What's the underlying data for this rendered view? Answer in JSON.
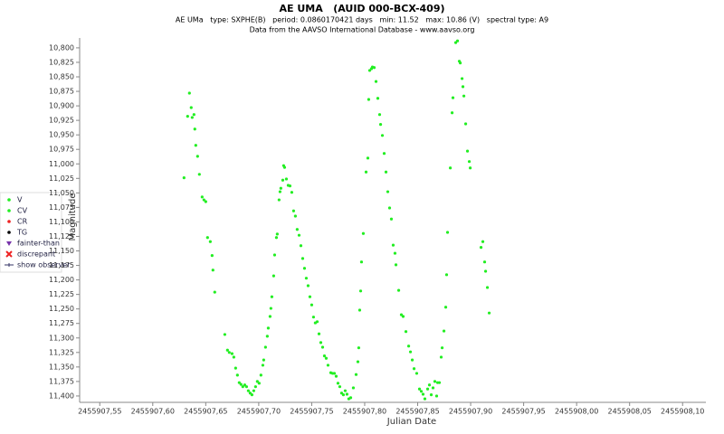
{
  "chart_data": {
    "type": "scatter",
    "title": "AE UMA   (AUID 000-BCX-409)",
    "subtitle": "AE UMa   type: SXPHE(B)   period: 0.0860170421 days   min: 11.52   max: 10.86 (V)   spectral type: A9",
    "source": "Data from the AAVSO International Database - www.aavso.org",
    "x_label": "Julian Date",
    "y_label": "Magnitude",
    "xlim": [
      2455907.531,
      2455908.122
    ],
    "ylim": [
      10.783,
      11.411
    ],
    "y_inverted": true,
    "xticks": [
      {
        "value": 2455907.55,
        "label": "2455907,55"
      },
      {
        "value": 2455907.6,
        "label": "2455907,60"
      },
      {
        "value": 2455907.65,
        "label": "2455907,65"
      },
      {
        "value": 2455907.7,
        "label": "2455907,70"
      },
      {
        "value": 2455907.75,
        "label": "2455907,75"
      },
      {
        "value": 2455907.8,
        "label": "2455907,80"
      },
      {
        "value": 2455907.85,
        "label": "2455907,85"
      },
      {
        "value": 2455907.9,
        "label": "2455907,90"
      },
      {
        "value": 2455907.95,
        "label": "2455907,95"
      },
      {
        "value": 2455908.0,
        "label": "2455908,00"
      },
      {
        "value": 2455908.05,
        "label": "2455908,05"
      },
      {
        "value": 2455908.1,
        "label": "2455908,10"
      }
    ],
    "yticks": [
      {
        "value": 10.8,
        "label": "10,800"
      },
      {
        "value": 10.825,
        "label": "10,825"
      },
      {
        "value": 10.85,
        "label": "10,850"
      },
      {
        "value": 10.875,
        "label": "10,875"
      },
      {
        "value": 10.9,
        "label": "10,900"
      },
      {
        "value": 10.925,
        "label": "10,925"
      },
      {
        "value": 10.95,
        "label": "10,950"
      },
      {
        "value": 10.975,
        "label": "10,975"
      },
      {
        "value": 11.0,
        "label": "11,000"
      },
      {
        "value": 11.025,
        "label": "11,025"
      },
      {
        "value": 11.05,
        "label": "11,050"
      },
      {
        "value": 11.075,
        "label": "11,075"
      },
      {
        "value": 11.1,
        "label": "11,100"
      },
      {
        "value": 11.125,
        "label": "11,125"
      },
      {
        "value": 11.15,
        "label": "11,150"
      },
      {
        "value": 11.175,
        "label": "11,175"
      },
      {
        "value": 11.2,
        "label": "11,200"
      },
      {
        "value": 11.225,
        "label": "11,225"
      },
      {
        "value": 11.25,
        "label": "11,250"
      },
      {
        "value": 11.275,
        "label": "11,275"
      },
      {
        "value": 11.3,
        "label": "11,300"
      },
      {
        "value": 11.325,
        "label": "11,325"
      },
      {
        "value": 11.35,
        "label": "11,350"
      },
      {
        "value": 11.375,
        "label": "11,375"
      },
      {
        "value": 11.4,
        "label": "11,400"
      }
    ],
    "series": [
      {
        "name": "V",
        "color": "#22ee22",
        "x": [
          2455907.6295,
          2455907.6329,
          2455907.6346,
          2455907.6363,
          2455907.6372,
          2455907.6389,
          2455907.6397,
          2455907.6406,
          2455907.6423,
          2455907.644,
          2455907.6466,
          2455907.6483,
          2455907.65,
          2455907.6517,
          2455907.6543,
          2455907.656,
          2455907.6568,
          2455907.6585,
          2455907.668,
          2455907.6705,
          2455907.6722,
          2455907.6748,
          2455907.6765,
          2455907.6782,
          2455907.6799,
          2455907.6816,
          2455907.6833,
          2455907.685,
          2455907.6868,
          2455907.6885,
          2455907.6902,
          2455907.6919,
          2455907.6936,
          2455907.6953,
          2455907.697,
          2455907.6987,
          2455907.7004,
          2455907.7021,
          2455907.7039,
          2455907.7047,
          2455907.7064,
          2455907.7081,
          2455907.709,
          2455907.7107,
          2455907.7115,
          2455907.7124,
          2455907.7141,
          2455907.715,
          2455907.7167,
          2455907.7175,
          2455907.7192,
          2455907.7201,
          2455907.7209,
          2455907.7227,
          2455907.7235,
          2455907.7244,
          2455907.7261,
          2455907.7278,
          2455907.7295,
          2455907.7312,
          2455907.7329,
          2455907.7346,
          2455907.7363,
          2455907.7381,
          2455907.7398,
          2455907.7415,
          2455907.7432,
          2455907.7449,
          2455907.7466,
          2455907.7483,
          2455907.75,
          2455907.7517,
          2455907.7534,
          2455907.7552,
          2455907.7569,
          2455907.7586,
          2455907.7603,
          2455907.762,
          2455907.7637,
          2455907.7654,
          2455907.768,
          2455907.7697,
          2455907.7714,
          2455907.7731,
          2455907.7748,
          2455907.7765,
          2455907.7782,
          2455907.7799,
          2455907.7816,
          2455907.7833,
          2455907.785,
          2455907.7868,
          2455907.7893,
          2455907.7919,
          2455907.7936,
          2455907.7944,
          2455907.7953,
          2455907.7962,
          2455907.797,
          2455907.7987,
          2455907.8013,
          2455907.803,
          2455907.8038,
          2455907.8047,
          2455907.8064,
          2455907.8073,
          2455907.809,
          2455907.8107,
          2455907.8124,
          2455907.8141,
          2455907.815,
          2455907.8167,
          2455907.8184,
          2455907.8201,
          2455907.8218,
          2455907.8235,
          2455907.8252,
          2455907.8269,
          2455907.8286,
          2455907.8295,
          2455907.8321,
          2455907.8346,
          2455907.8363,
          2455907.8389,
          2455907.8415,
          2455907.8432,
          2455907.8449,
          2455907.8466,
          2455907.8491,
          2455907.8517,
          2455907.8534,
          2455907.8551,
          2455907.8568,
          2455907.8594,
          2455907.8611,
          2455907.8628,
          2455907.8645,
          2455907.8662,
          2455907.8679,
          2455907.8688,
          2455907.8705,
          2455907.8722,
          2455907.8731,
          2455907.8748,
          2455907.8765,
          2455907.8773,
          2455907.8782,
          2455907.8808,
          2455907.8825,
          2455907.8833,
          2455907.8859,
          2455907.8876,
          2455907.8893,
          2455907.8902,
          2455907.8919,
          2455907.8927,
          2455907.8936,
          2455907.8953,
          2455907.897,
          2455907.8987,
          2455907.8996,
          2455907.9098,
          2455907.9115,
          2455907.9132,
          2455907.9141,
          2455907.9158,
          2455907.9175
        ],
        "values": [
          11.024,
          10.918,
          10.878,
          10.903,
          10.92,
          10.915,
          10.94,
          10.968,
          10.987,
          11.018,
          11.057,
          11.062,
          11.065,
          11.127,
          11.134,
          11.158,
          11.183,
          11.221,
          11.294,
          11.321,
          11.325,
          11.327,
          11.333,
          11.352,
          11.364,
          11.377,
          11.38,
          11.384,
          11.381,
          11.384,
          11.391,
          11.395,
          11.398,
          11.391,
          11.384,
          11.375,
          11.378,
          11.364,
          11.347,
          11.338,
          11.316,
          11.297,
          11.283,
          11.263,
          11.249,
          11.229,
          11.193,
          11.157,
          11.127,
          11.121,
          11.062,
          11.048,
          11.042,
          11.028,
          11.003,
          11.006,
          11.026,
          11.037,
          11.038,
          11.049,
          11.081,
          11.09,
          11.113,
          11.123,
          11.141,
          11.163,
          11.18,
          11.197,
          11.21,
          11.229,
          11.243,
          11.264,
          11.274,
          11.272,
          11.293,
          11.308,
          11.316,
          11.331,
          11.335,
          11.347,
          11.36,
          11.361,
          11.361,
          11.366,
          11.378,
          11.384,
          11.395,
          11.398,
          11.391,
          11.397,
          11.405,
          11.403,
          11.386,
          11.363,
          11.341,
          11.317,
          11.252,
          11.219,
          11.169,
          11.12,
          11.014,
          10.99,
          10.889,
          10.839,
          10.836,
          10.833,
          10.834,
          10.858,
          10.887,
          10.915,
          10.932,
          10.951,
          10.982,
          11.014,
          11.048,
          11.076,
          11.095,
          11.14,
          11.154,
          11.174,
          11.218,
          11.26,
          11.263,
          11.289,
          11.314,
          11.324,
          11.338,
          11.353,
          11.361,
          11.388,
          11.392,
          11.397,
          11.405,
          11.388,
          11.381,
          11.398,
          11.386,
          11.375,
          11.4,
          11.377,
          11.377,
          11.333,
          11.317,
          11.288,
          11.247,
          11.191,
          11.118,
          11.007,
          10.912,
          10.886,
          10.791,
          10.788,
          10.823,
          10.826,
          10.853,
          10.867,
          10.883,
          10.931,
          10.978,
          10.996,
          11.007,
          11.144,
          11.134,
          11.169,
          11.185,
          11.213,
          11.257
        ]
      }
    ],
    "legend_extra": [
      {
        "name": "CV",
        "color": "#22ee22",
        "marker": "dot"
      },
      {
        "name": "CR",
        "color": "#ee2222",
        "marker": "dot"
      },
      {
        "name": "TG",
        "color": "#000000",
        "marker": "dot"
      },
      {
        "name": "fainter-than",
        "color": "#7733aa",
        "marker": "triangle"
      },
      {
        "name": "discrepant",
        "color": "#ee2222",
        "marker": "cross"
      },
      {
        "name": "show observer",
        "color": "#333366",
        "marker": "line"
      }
    ]
  }
}
